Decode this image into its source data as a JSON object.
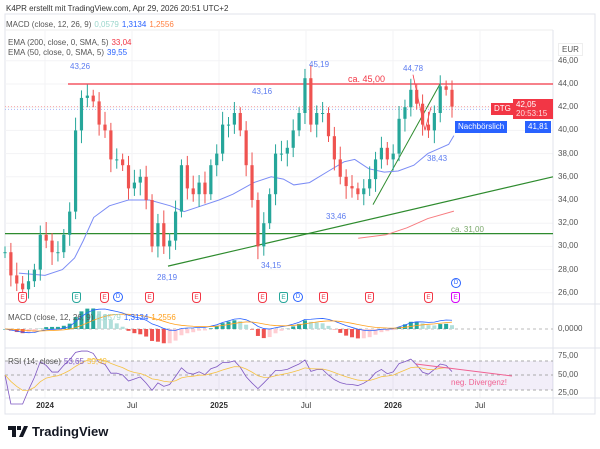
{
  "header": "K4PR erstellt mit TradingView.com, Apr 29, 2026 20:51 UTC+2",
  "macd_legend": {
    "label": "MACD (close, 12, 26, 9)",
    "hist": "0,0579",
    "macd": "1,3134",
    "signal": "1,2556"
  },
  "ema200": {
    "label": "EMA (200, close, 0, SMA, 5)",
    "value": "33,04"
  },
  "ema50": {
    "label": "EMA (50, close, 0, SMA, 5)",
    "value": "39,55"
  },
  "rsi_legend": {
    "label": "RSI (14, close)",
    "rsi": "53,65",
    "ma": "59,49"
  },
  "currency": "EUR",
  "price_ticks": [
    "46,00",
    "44,00",
    "42,00",
    "40,00",
    "38,00",
    "36,00",
    "34,00",
    "32,00",
    "30,00",
    "28,00",
    "26,00"
  ],
  "macd_tick": "0,0000",
  "rsi_ticks": [
    "75,00",
    "50,00",
    "25,00"
  ],
  "time_ticks": [
    "2024",
    "Jul",
    "2025",
    "Jul",
    "2026",
    "Jul"
  ],
  "tags": {
    "symbol": "DTG",
    "price": "42,05",
    "countdown": "20:53:15",
    "post_label": "Nachbörslich",
    "post_price": "41,81"
  },
  "annotations": {
    "h1": "43,26",
    "h2": "45,19",
    "h3": "44,78",
    "h4": "43,16",
    "l1": "38,43",
    "l2": "33,46",
    "l3": "28,19",
    "l4": "34,15",
    "res": "ca. 45,00",
    "sup": "ca. 31,00",
    "div": "neg. Divergenz!"
  },
  "events": [
    "E",
    "E",
    "E",
    "D",
    "E",
    "E",
    "E",
    "E",
    "D",
    "E",
    "E",
    "E",
    "E",
    "D"
  ],
  "logo": "TradingView",
  "colors": {
    "up": "#26a69a",
    "down": "#ef5350",
    "ema50": "#7b8cf5",
    "ema200": "#f77c80",
    "res": "#f23645",
    "sup": "#2e8b2e"
  },
  "chart_data": {
    "type": "candlestick",
    "ylim": [
      25,
      47
    ],
    "closes": [
      29.5,
      27.5,
      26.8,
      26.3,
      27,
      28,
      31,
      30.5,
      29.5,
      29.5,
      31,
      33,
      40,
      42.8,
      43,
      42.5,
      40.5,
      40,
      37.5,
      37.5,
      37,
      35,
      35.5,
      36,
      34,
      30,
      32,
      30,
      30.5,
      33,
      37,
      35,
      34.5,
      35.5,
      34.5,
      37,
      38,
      40.5,
      40.5,
      41.5,
      40,
      37,
      34,
      30,
      32,
      34.5,
      38,
      38,
      38.5,
      40,
      41.5,
      44.5,
      40.5,
      41.5,
      41.5,
      39.5,
      37.5,
      36,
      35.2,
      35,
      34.5,
      35,
      35.8,
      37.5,
      38.5,
      37.5,
      38,
      41,
      42,
      43.5,
      42.3,
      40.5,
      40,
      41.5,
      43.8,
      43.5,
      42.05
    ],
    "ema50": [
      [
        2023.85,
        27.7
      ],
      [
        2024.0,
        27.5
      ],
      [
        2024.1,
        28
      ],
      [
        2024.17,
        29
      ],
      [
        2024.22,
        30.5
      ],
      [
        2024.28,
        32.5
      ],
      [
        2024.37,
        33.5
      ],
      [
        2024.48,
        34
      ],
      [
        2024.6,
        34
      ],
      [
        2024.72,
        33.5
      ],
      [
        2024.8,
        33
      ],
      [
        2024.9,
        33.5
      ],
      [
        2025.0,
        34
      ],
      [
        2025.08,
        34.5
      ],
      [
        2025.2,
        35.5
      ],
      [
        2025.3,
        36
      ],
      [
        2025.37,
        35.8
      ],
      [
        2025.43,
        35.3
      ],
      [
        2025.52,
        35.5
      ],
      [
        2025.63,
        36.5
      ],
      [
        2025.72,
        37.3
      ],
      [
        2025.78,
        37.5
      ],
      [
        2025.86,
        36.7
      ],
      [
        2025.95,
        36.4
      ],
      [
        2026.03,
        36.5
      ],
      [
        2026.12,
        37
      ],
      [
        2026.2,
        38
      ],
      [
        2026.32,
        38.8
      ],
      [
        2026.35,
        39.55
      ]
    ],
    "ema200": [
      [
        2025.8,
        30.7
      ],
      [
        2025.96,
        31
      ],
      [
        2026.08,
        31.6
      ],
      [
        2026.2,
        32.4
      ],
      [
        2026.35,
        33.04
      ]
    ],
    "resistance": 44,
    "support": 31.1
  }
}
